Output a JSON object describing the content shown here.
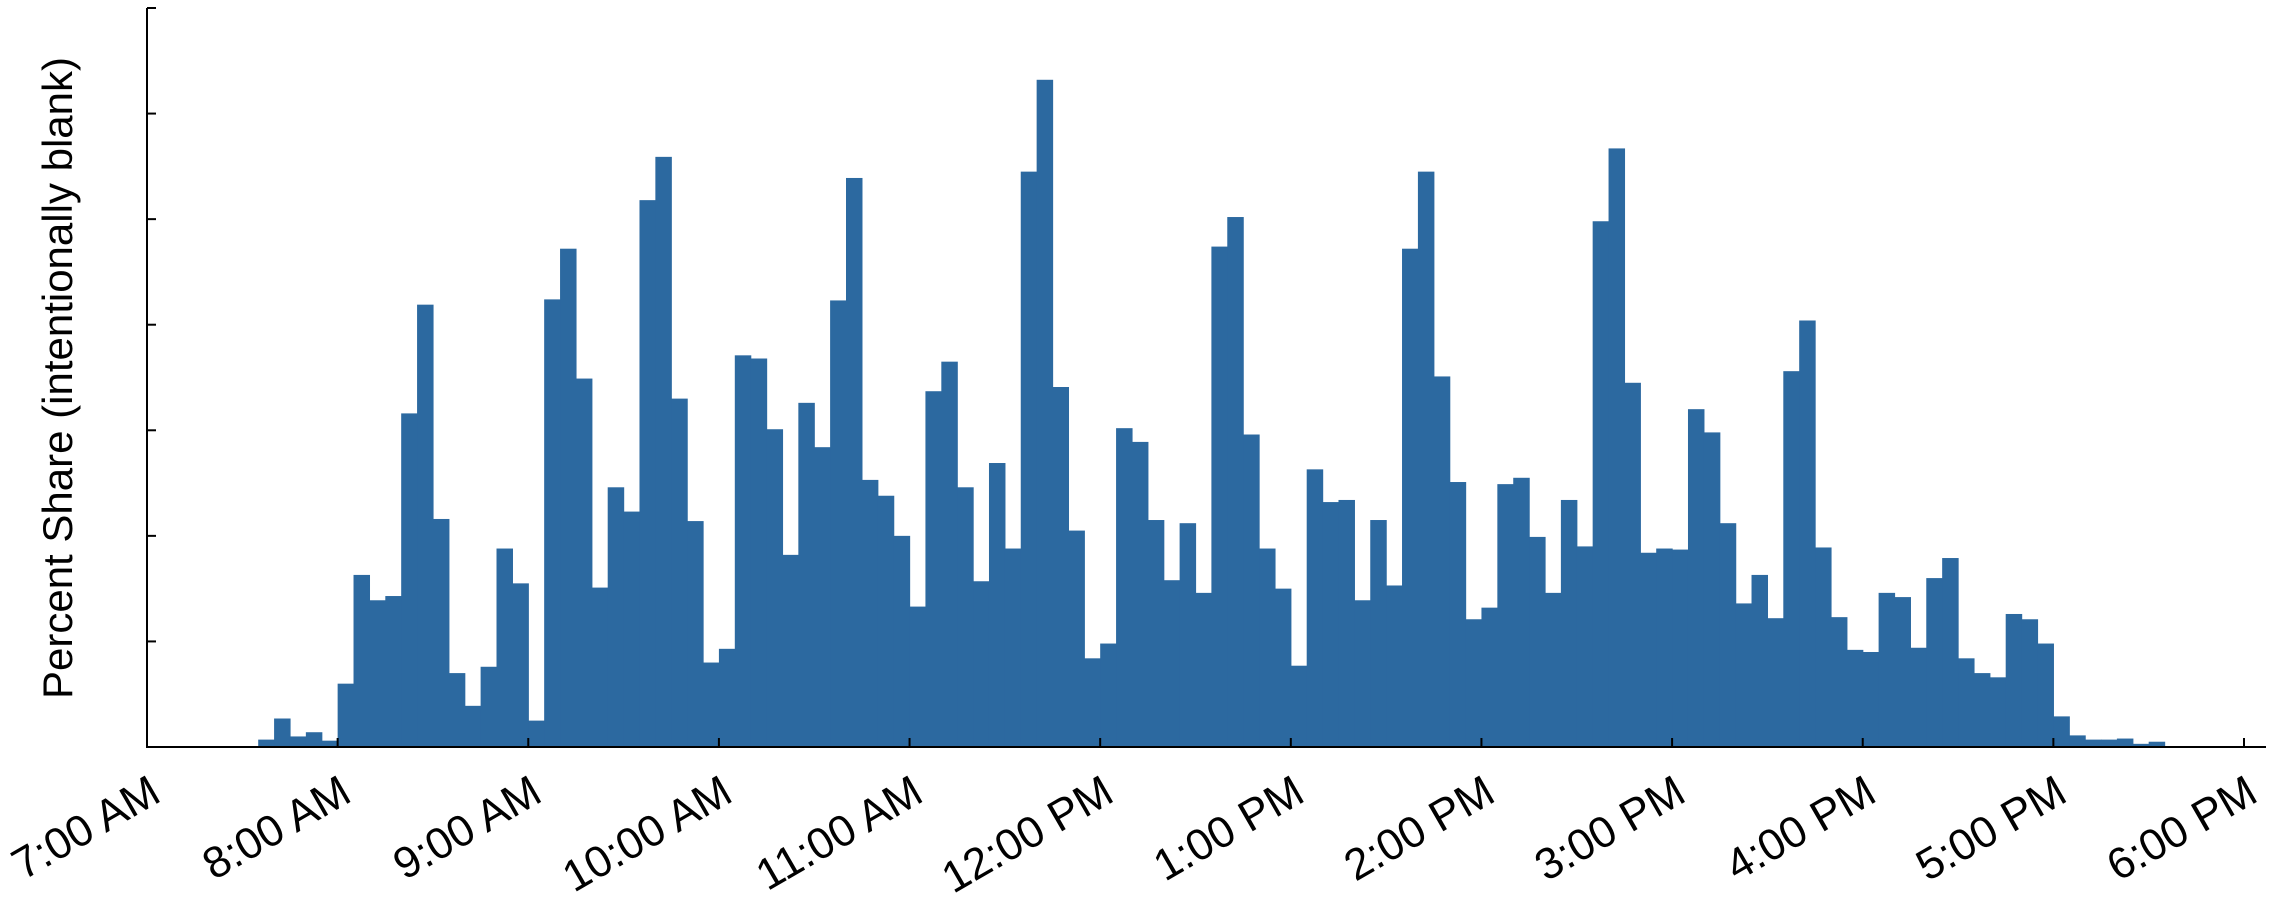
{
  "chart_data": {
    "type": "bar",
    "title": "",
    "ylabel": "Percent Share (intentionally blank)",
    "xlabel": "",
    "bar_color": "#2c69a0",
    "x_ticks": [
      "7:00 AM",
      "8:00 AM",
      "9:00 AM",
      "10:00 AM",
      "11:00 AM",
      "12:00 PM",
      "1:00 PM",
      "2:00 PM",
      "3:00 PM",
      "4:00 PM",
      "5:00 PM",
      "6:00 PM"
    ],
    "x_range_minutes": [
      0,
      660
    ],
    "bin_minutes": 5,
    "y_tick_count": 7,
    "ylim": [
      0,
      7
    ],
    "grid": false,
    "legend": "none",
    "bins_start_minute": 35,
    "values": [
      0.07,
      0.27,
      0.1,
      0.14,
      0.06,
      0.6,
      1.63,
      1.39,
      1.43,
      3.16,
      4.19,
      2.16,
      0.7,
      0.39,
      0.76,
      1.88,
      1.55,
      0.25,
      4.24,
      4.72,
      3.49,
      1.51,
      2.46,
      2.23,
      5.18,
      5.59,
      3.3,
      2.14,
      0.8,
      0.93,
      3.71,
      3.68,
      3.01,
      1.82,
      3.26,
      2.84,
      4.23,
      5.39,
      2.53,
      2.38,
      2.0,
      1.33,
      3.37,
      3.65,
      2.46,
      1.57,
      2.69,
      1.88,
      5.45,
      6.32,
      3.41,
      2.05,
      0.84,
      0.98,
      3.02,
      2.89,
      2.15,
      1.58,
      2.12,
      1.46,
      4.74,
      5.02,
      2.96,
      1.88,
      1.5,
      0.77,
      2.63,
      2.32,
      2.34,
      1.39,
      2.15,
      1.53,
      4.72,
      5.45,
      3.51,
      2.51,
      1.21,
      1.32,
      2.49,
      2.55,
      1.99,
      1.46,
      2.34,
      1.9,
      4.98,
      5.67,
      3.45,
      1.84,
      1.88,
      1.87,
      3.2,
      2.98,
      2.12,
      1.36,
      1.63,
      1.22,
      3.56,
      4.04,
      1.89,
      1.23,
      0.92,
      0.9,
      1.46,
      1.42,
      0.94,
      1.6,
      1.79,
      0.84,
      0.7,
      0.66,
      1.26,
      1.21,
      0.98,
      0.29,
      0.11,
      0.07,
      0.07,
      0.08,
      0.03,
      0.05
    ]
  }
}
